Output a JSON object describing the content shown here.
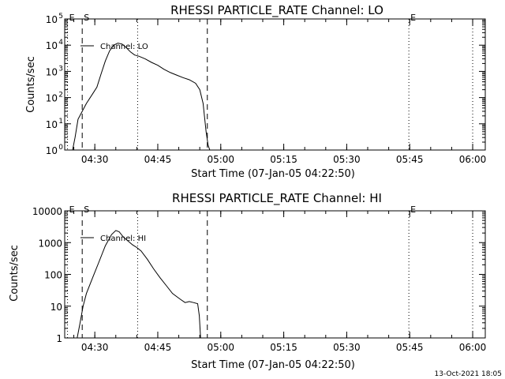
{
  "footer": {
    "timestamp": "13-Oct-2021 18:05"
  },
  "chart_data": [
    {
      "type": "line",
      "title": "RHESSI PARTICLE_RATE Channel: LO",
      "xlabel": "Start Time (07-Jan-05 04:22:50)",
      "ylabel": "Counts/sec",
      "yscale": "log",
      "ylim": [
        1,
        100000
      ],
      "xlim_minutes": [
        22.83,
        123.0
      ],
      "x_ticks": [
        {
          "label": "04:30",
          "value": 30
        },
        {
          "label": "04:45",
          "value": 45
        },
        {
          "label": "05:00",
          "value": 60
        },
        {
          "label": "05:15",
          "value": 75
        },
        {
          "label": "05:30",
          "value": 90
        },
        {
          "label": "05:45",
          "value": 105
        },
        {
          "label": "06:00",
          "value": 120
        }
      ],
      "y_ticks": [
        {
          "base": "10",
          "exp": "0",
          "value": 1
        },
        {
          "base": "10",
          "exp": "1",
          "value": 10
        },
        {
          "base": "10",
          "exp": "2",
          "value": 100
        },
        {
          "base": "10",
          "exp": "3",
          "value": 1000
        },
        {
          "base": "10",
          "exp": "4",
          "value": 10000
        },
        {
          "base": "10",
          "exp": "5",
          "value": 100000
        }
      ],
      "markers": [
        {
          "label": "E",
          "x": 23.5,
          "style": "dotted"
        },
        {
          "label": "S",
          "x": 27.0,
          "style": "dashed"
        },
        {
          "label": "",
          "x": 40.2,
          "style": "dotted"
        },
        {
          "label": "",
          "x": 56.8,
          "style": "dashed"
        },
        {
          "label": "E",
          "x": 104.8,
          "style": "dotted"
        },
        {
          "label": "",
          "x": 120.0,
          "style": "dotted"
        }
      ],
      "legend": {
        "label": "Channel: LO",
        "position": "top-left"
      },
      "series": [
        {
          "x": [
            24.7,
            25.3,
            26.0,
            27.0,
            28.0,
            29.5,
            30.5,
            31.5,
            32.5,
            33.5,
            34.5,
            35.5,
            36.5,
            37.5,
            38.5,
            39.5,
            40.5,
            42.0,
            43.5,
            45.0,
            46.5,
            48.0,
            49.5,
            51.0,
            52.5,
            54.0,
            55.0,
            55.8,
            56.5,
            57.0,
            57.4
          ],
          "y": [
            1,
            3,
            15,
            30,
            60,
            140,
            250,
            800,
            2500,
            6000,
            10000,
            12000,
            11000,
            8000,
            5500,
            4200,
            3800,
            3000,
            2200,
            1700,
            1200,
            900,
            720,
            580,
            480,
            350,
            200,
            60,
            5,
            1.5,
            1
          ]
        }
      ]
    },
    {
      "type": "line",
      "title": "RHESSI PARTICLE_RATE Channel: HI",
      "xlabel": "Start Time (07-Jan-05 04:22:50)",
      "ylabel": "Counts/sec",
      "yscale": "log",
      "ylim": [
        1,
        10000
      ],
      "xlim_minutes": [
        22.83,
        123.0
      ],
      "x_ticks": [
        {
          "label": "04:30",
          "value": 30
        },
        {
          "label": "04:45",
          "value": 45
        },
        {
          "label": "05:00",
          "value": 60
        },
        {
          "label": "05:15",
          "value": 75
        },
        {
          "label": "05:30",
          "value": 90
        },
        {
          "label": "05:45",
          "value": 105
        },
        {
          "label": "06:00",
          "value": 120
        }
      ],
      "y_ticks": [
        {
          "label": "1",
          "value": 1
        },
        {
          "label": "10",
          "value": 10
        },
        {
          "label": "100",
          "value": 100
        },
        {
          "label": "1000",
          "value": 1000
        },
        {
          "label": "10000",
          "value": 10000
        }
      ],
      "markers": [
        {
          "label": "E",
          "x": 23.5,
          "style": "dotted"
        },
        {
          "label": "S",
          "x": 27.0,
          "style": "dashed"
        },
        {
          "label": "",
          "x": 40.2,
          "style": "dotted"
        },
        {
          "label": "",
          "x": 56.8,
          "style": "dashed"
        },
        {
          "label": "E",
          "x": 104.8,
          "style": "dotted"
        },
        {
          "label": "",
          "x": 120.0,
          "style": "dotted"
        }
      ],
      "legend": {
        "label": "Channel: HI",
        "position": "top-left"
      },
      "series": [
        {
          "x": [
            25.8,
            26.5,
            27.2,
            28.0,
            29.5,
            31.0,
            32.5,
            34.0,
            35.0,
            35.8,
            36.8,
            38.0,
            39.0,
            40.0,
            41.0,
            42.5,
            44.0,
            45.5,
            47.0,
            48.5,
            49.5,
            50.5,
            51.5,
            52.5,
            53.5,
            54.5,
            54.9,
            55.2
          ],
          "y": [
            1,
            3,
            10,
            25,
            80,
            250,
            800,
            1800,
            2400,
            2200,
            1500,
            1100,
            850,
            700,
            550,
            300,
            150,
            80,
            45,
            25,
            20,
            16,
            13,
            14,
            13,
            12,
            5,
            1
          ]
        }
      ]
    }
  ]
}
